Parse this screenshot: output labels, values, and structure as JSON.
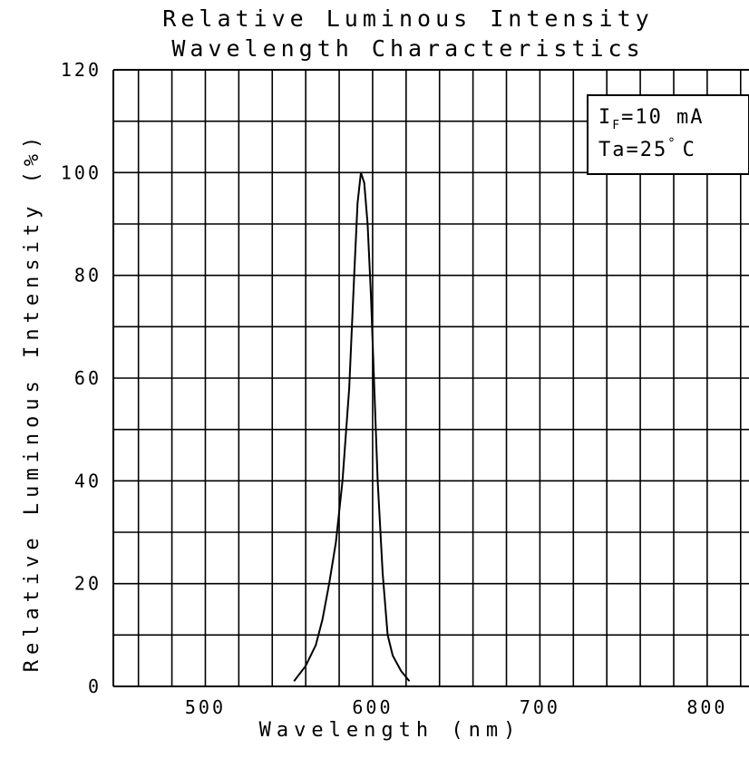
{
  "chart_data": {
    "type": "line",
    "title": "Relative Luminous Intensity",
    "subtitle": "Wavelength Characteristics",
    "xlabel": "Wavelength    (nm)",
    "ylabel": "Relative Luminous Intensity  (%)",
    "xlim": [
      445,
      825
    ],
    "ylim": [
      0,
      120
    ],
    "x_ticks": [
      {
        "value": 500,
        "label": "500"
      },
      {
        "value": 600,
        "label": "600"
      },
      {
        "value": 700,
        "label": "700"
      },
      {
        "value": 800,
        "label": "800"
      }
    ],
    "y_ticks": [
      {
        "value": 0,
        "label": "0"
      },
      {
        "value": 20,
        "label": "20"
      },
      {
        "value": 40,
        "label": "40"
      },
      {
        "value": 60,
        "label": "60"
      },
      {
        "value": 80,
        "label": "80"
      },
      {
        "value": 100,
        "label": "100"
      },
      {
        "value": 120,
        "label": "120"
      }
    ],
    "grid": true,
    "grid_x_step": 20,
    "grid_y_step": 10,
    "annotation": {
      "if_prefix": "I",
      "if_sub": "F",
      "if_value": "=10  mA",
      "ta": "Ta=25",
      "ta_unit": "C",
      "placement": "top-right"
    },
    "series": [
      {
        "x": [
          553,
          560,
          566,
          570,
          574,
          578,
          582,
          586,
          589,
          591,
          593,
          595,
          597,
          599,
          601,
          603,
          606,
          609,
          612,
          617,
          622
        ],
        "y": [
          1,
          4,
          8,
          13,
          20,
          28,
          40,
          58,
          80,
          94,
          100,
          98,
          90,
          76,
          58,
          40,
          22,
          10,
          6,
          3,
          1
        ]
      }
    ]
  }
}
